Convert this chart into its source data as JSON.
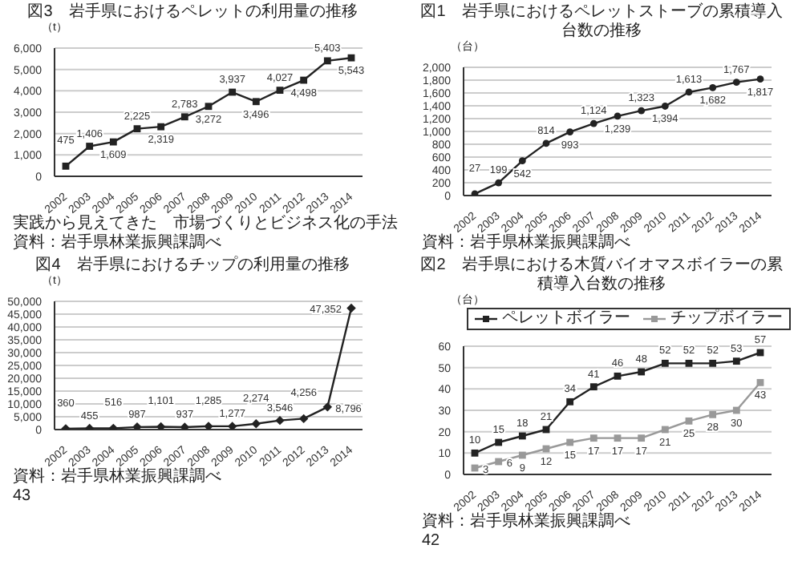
{
  "chart_data": [
    {
      "type": "line",
      "title": "図3　岩手県におけるペレットの利用量の推移",
      "ylabel": "（t）",
      "categories": [
        "2002",
        "2003",
        "2004",
        "2005",
        "2006",
        "2007",
        "2008",
        "2009",
        "2010",
        "2011",
        "2012",
        "2013",
        "2014"
      ],
      "series": [
        {
          "color": "#222222",
          "values": [
            475,
            1406,
            1609,
            2225,
            2319,
            2783,
            3272,
            3937,
            3496,
            4027,
            4498,
            5403,
            5543
          ],
          "value_labels": [
            "475",
            "1,406",
            "1,609",
            "2,225",
            "2,319",
            "2,783",
            "3,272",
            "3,937",
            "3,496",
            "4,027",
            "4,498",
            "5,403",
            "5,543"
          ]
        }
      ],
      "ylim": [
        0,
        6000
      ],
      "yticks": [
        0,
        {
          "value": 1000,
          "label": "1,000"
        },
        {
          "value": 2000,
          "label": "2,000"
        },
        {
          "value": 3000,
          "label": "3,000"
        },
        {
          "value": 4000,
          "label": "4,000"
        },
        {
          "value": 5000,
          "label": "5,000"
        },
        {
          "value": 6000,
          "label": "6,000"
        }
      ],
      "grid": "y",
      "marker": "square",
      "annotations": [
        "実践から見えてきた　市場づくりとビジネス化の手法",
        "資料：岩手県林業振興課調べ"
      ]
    },
    {
      "type": "line",
      "title": "図1　岩手県におけるペレットストーブの累積導入台数の推移",
      "ylabel": "（台）",
      "categories": [
        "2002",
        "2003",
        "2004",
        "2005",
        "2006",
        "2007",
        "2008",
        "2009",
        "2010",
        "2011",
        "2012",
        "2013",
        "2014"
      ],
      "series": [
        {
          "color": "#222222",
          "values": [
            27,
            199,
            542,
            814,
            993,
            1124,
            1239,
            1323,
            1394,
            1613,
            1682,
            1767,
            1817
          ],
          "value_labels": [
            "27",
            "199",
            "542",
            "814",
            "993",
            "1,124",
            "1,239",
            "1,323",
            "1,394",
            "1,613",
            "1,682",
            "1,767",
            "1,817"
          ]
        }
      ],
      "ylim": [
        0,
        2000
      ],
      "yticks": [
        0,
        200,
        400,
        600,
        800,
        {
          "value": 1000,
          "label": "1,000"
        },
        {
          "value": 1200,
          "label": "1,200"
        },
        {
          "value": 1400,
          "label": "1,400"
        },
        {
          "value": 1600,
          "label": "1,600"
        },
        {
          "value": 1800,
          "label": "1,800"
        },
        {
          "value": 2000,
          "label": "2,000"
        }
      ],
      "grid": "y",
      "marker": "circle",
      "annotations": [
        "資料：岩手県林業振興課調べ"
      ]
    },
    {
      "type": "line",
      "title": "図4　岩手県におけるチップの利用量の推移",
      "ylabel": "（t）",
      "categories": [
        "2002",
        "2003",
        "2004",
        "2005",
        "2006",
        "2007",
        "2008",
        "2009",
        "2010",
        "2011",
        "2012",
        "2013",
        "2014"
      ],
      "series": [
        {
          "color": "#222222",
          "values": [
            360,
            455,
            516,
            987,
            1101,
            937,
            1285,
            1277,
            2274,
            3546,
            4256,
            8796,
            47352
          ],
          "value_labels": [
            "360",
            "455",
            "516",
            "987",
            "1,101",
            "937",
            "1,285",
            "1,277",
            "2,274",
            "3,546",
            "4,256",
            "8,796",
            "47,352"
          ]
        }
      ],
      "ylim": [
        0,
        50000
      ],
      "yticks": [
        0,
        {
          "value": 5000,
          "label": "5,000"
        },
        {
          "value": 10000,
          "label": "10,000"
        },
        {
          "value": 15000,
          "label": "15,000"
        },
        {
          "value": 20000,
          "label": "20,000"
        },
        {
          "value": 25000,
          "label": "25,000"
        },
        {
          "value": 30000,
          "label": "30,000"
        },
        {
          "value": 35000,
          "label": "35,000"
        },
        {
          "value": 40000,
          "label": "40,000"
        },
        {
          "value": 45000,
          "label": "45,000"
        },
        {
          "value": 50000,
          "label": "50,000"
        }
      ],
      "grid": "y",
      "marker": "diamond",
      "annotations": [
        "資料：岩手県林業振興課調べ",
        "43"
      ]
    },
    {
      "type": "line",
      "title": "図2　岩手県における木質バイオマスボイラーの累積導入台数の推移",
      "ylabel": "（台）",
      "categories": [
        "2002",
        "2003",
        "2004",
        "2005",
        "2006",
        "2007",
        "2008",
        "2009",
        "2010",
        "2011",
        "2012",
        "2013",
        "2014"
      ],
      "series": [
        {
          "name": "ペレットボイラー",
          "color": "#222222",
          "values": [
            10,
            15,
            18,
            21,
            34,
            41,
            46,
            48,
            52,
            52,
            52,
            53,
            57
          ]
        },
        {
          "name": "チップボイラー",
          "color": "#999999",
          "values": [
            3,
            6,
            9,
            12,
            15,
            17,
            17,
            17,
            21,
            25,
            28,
            30,
            43
          ]
        }
      ],
      "ylim": [
        0,
        60
      ],
      "yticks": [
        0,
        10,
        20,
        30,
        40,
        50,
        60
      ],
      "grid": "y",
      "marker": "square",
      "data_labels": true,
      "legend": "top left",
      "annotations": [
        "資料：岩手県林業振興課調べ",
        "42"
      ]
    }
  ]
}
